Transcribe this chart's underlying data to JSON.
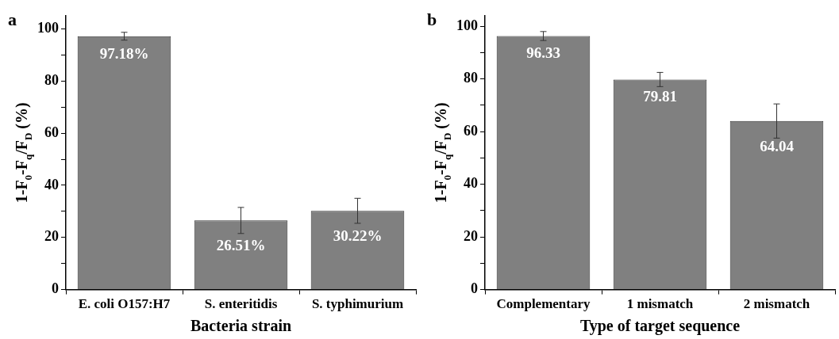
{
  "chart_data": [
    {
      "type": "bar",
      "title": "a",
      "xlabel": "Bacteria strain",
      "ylabel": "1-F$_{0}$-F$_{q}$/F$_{D}$ (%)",
      "categories": [
        "E. coli O157:H7",
        "S. enteritidis",
        "S. typhimurium"
      ],
      "values": [
        97.18,
        26.51,
        30.22
      ],
      "errors": [
        1.5,
        5,
        4.8
      ],
      "value_labels": [
        "97.18%",
        "26.51%",
        "30.22%"
      ],
      "color": "#808080",
      "ylim": [
        0,
        105
      ],
      "yticks": [
        0,
        {
          "value": 10,
          "label": null
        },
        20,
        {
          "value": 30,
          "label": null
        },
        40,
        {
          "value": 50,
          "label": null
        },
        60,
        {
          "value": 70,
          "label": null
        },
        80,
        {
          "value": 90,
          "label": null
        },
        100
      ],
      "grid": false
    },
    {
      "type": "bar",
      "title": "b",
      "xlabel": "Type of target sequence",
      "ylabel": "1-F$_{0}$-F$_{q}$/F$_{D}$ (%)",
      "categories": [
        "Complementary",
        "1 mismatch",
        "2 mismatch"
      ],
      "values": [
        96.33,
        79.81,
        64.04
      ],
      "errors": [
        1.7,
        2.7,
        6.5
      ],
      "data_labels": true,
      "color": "#808080",
      "ylim": [
        0,
        104
      ],
      "yticks": [
        0,
        {
          "value": 10,
          "label": null
        },
        20,
        {
          "value": 30,
          "label": null
        },
        40,
        {
          "value": 50,
          "label": null
        },
        60,
        {
          "value": 70,
          "label": null
        },
        80,
        {
          "value": 90,
          "label": null
        },
        100
      ],
      "grid": false
    }
  ]
}
